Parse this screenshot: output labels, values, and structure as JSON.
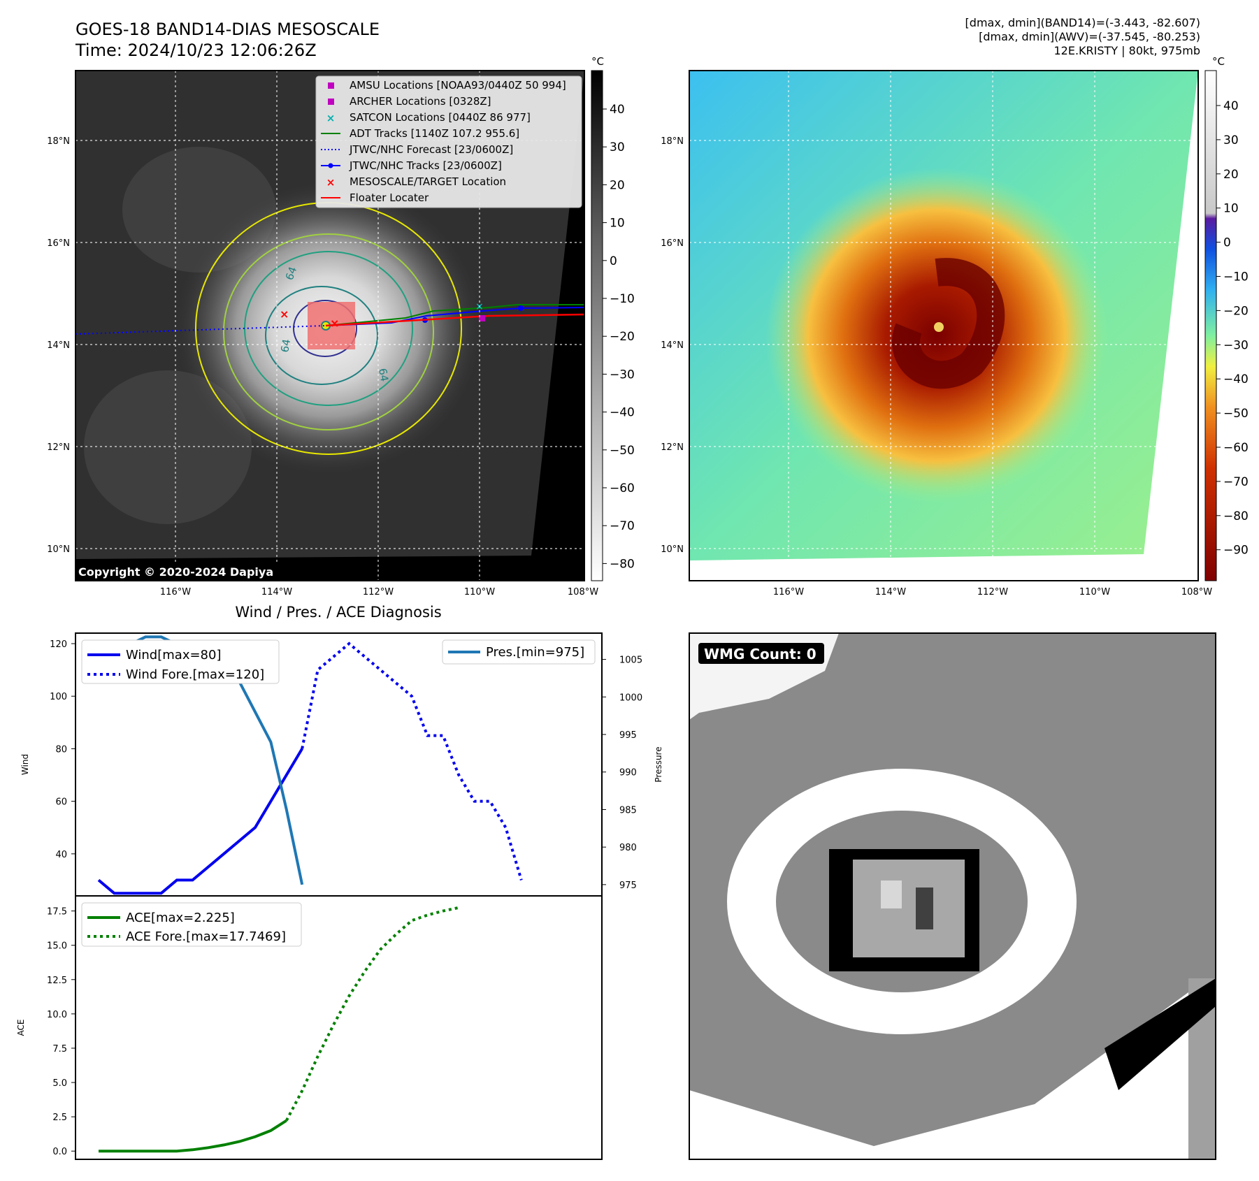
{
  "header": {
    "title": "GOES-18 BAND14-DIAS MESOSCALE",
    "time": "Time: 2024/10/23 12:06:26Z",
    "info_lines": [
      "[dmax, dmin](BAND14)=(-3.443, -82.607)",
      "[dmax, dmin](AWV)=(-37.545, -80.253)",
      "12E.KRISTY | 80kt, 975mb"
    ]
  },
  "map": {
    "lon_ticks": [
      "116°W",
      "114°W",
      "112°W",
      "110°W",
      "108°W"
    ],
    "lat_ticks": [
      "18°N",
      "16°N",
      "14°N",
      "12°N",
      "10°N"
    ],
    "copyright": "Copyright © 2020-2024 Dapiya",
    "colorbar_unit": "°C",
    "gray_colorbar_ticks": [
      "40",
      "30",
      "20",
      "10",
      "0",
      "−10",
      "−20",
      "−30",
      "−40",
      "−50",
      "−60",
      "−70",
      "−80"
    ],
    "color_colorbar_ticks": [
      "40",
      "30",
      "20",
      "10",
      "0",
      "−10",
      "−20",
      "−30",
      "−40",
      "−50",
      "−60",
      "−70",
      "−80",
      "−90"
    ],
    "legend": [
      {
        "label": "AMSU Locations [NOAA93/0440Z 50 994]",
        "marker": "square",
        "color": "#c000c0"
      },
      {
        "label": "ARCHER Locations [0328Z]",
        "marker": "square",
        "color": "#c000c0"
      },
      {
        "label": "SATCON Locations [0440Z 86 977]",
        "marker": "x",
        "color": "#00b0b0"
      },
      {
        "label": "ADT Tracks [1140Z 107.2 955.6]",
        "marker": "line",
        "color": "#008000"
      },
      {
        "label": "JTWC/NHC Forecast [23/0600Z]",
        "marker": "dotted",
        "color": "#0000ff"
      },
      {
        "label": "JTWC/NHC Tracks [23/0600Z]",
        "marker": "line-dot",
        "color": "#0000ff"
      },
      {
        "label": "MESOSCALE/TARGET Location",
        "marker": "x",
        "color": "#ff0000"
      },
      {
        "label": "Floater Locater",
        "marker": "line",
        "color": "#ff0000"
      }
    ],
    "contour_labels": [
      "64",
      "64",
      "64"
    ]
  },
  "chart_data": [
    {
      "type": "line",
      "title": "Wind / Pres. / ACE Diagnosis",
      "ylabel": "Wind",
      "ylabel_right": "Pressure",
      "ylim": [
        24,
        124
      ],
      "ylim_right": [
        973.5,
        1008.5
      ],
      "y_ticks": [
        "120",
        "100",
        "80",
        "60",
        "40"
      ],
      "y_ticks_right": [
        "1005",
        "1000",
        "995",
        "990",
        "985",
        "980",
        "975"
      ],
      "series": [
        {
          "name": "Wind[max=80]",
          "style": "solid",
          "color": "#0000ee",
          "axis": "left",
          "values": [
            30,
            25,
            25,
            25,
            25,
            30,
            30,
            35,
            40,
            45,
            50,
            60,
            70,
            80
          ]
        },
        {
          "name": "Wind Fore.[max=120]",
          "style": "dotted",
          "color": "#0000ee",
          "axis": "left",
          "x_start": 13,
          "values": [
            80,
            110,
            115,
            120,
            115,
            110,
            105,
            100,
            85,
            85,
            70,
            60,
            60,
            50,
            30
          ]
        },
        {
          "name": "Pres.[min=975]",
          "style": "solid",
          "color": "#1f77b4",
          "axis": "right",
          "values": [
            1007,
            1007,
            1007,
            1008,
            1008,
            1007,
            1007,
            1006,
            1004,
            1002,
            998,
            994,
            985,
            975
          ]
        }
      ]
    },
    {
      "type": "line",
      "ylabel": "ACE",
      "ylim": [
        -0.6,
        18.6
      ],
      "y_ticks": [
        "17.5",
        "15.0",
        "12.5",
        "10.0",
        "7.5",
        "5.0",
        "2.5",
        "0.0"
      ],
      "series": [
        {
          "name": "ACE[max=2.225]",
          "style": "solid",
          "color": "#008000",
          "values": [
            0,
            0,
            0,
            0,
            0,
            0,
            0.1,
            0.25,
            0.45,
            0.7,
            1.05,
            1.5,
            2.225
          ]
        },
        {
          "name": "ACE Fore.[max=17.7469]",
          "style": "dotted",
          "color": "#008000",
          "x_start": 12,
          "values": [
            2.225,
            4.4,
            6.9,
            9.2,
            11.3,
            13.1,
            14.7,
            15.8,
            16.8,
            17.2,
            17.5,
            17.7469
          ]
        }
      ]
    }
  ],
  "wmg": {
    "label": "WMG Count: 0"
  }
}
